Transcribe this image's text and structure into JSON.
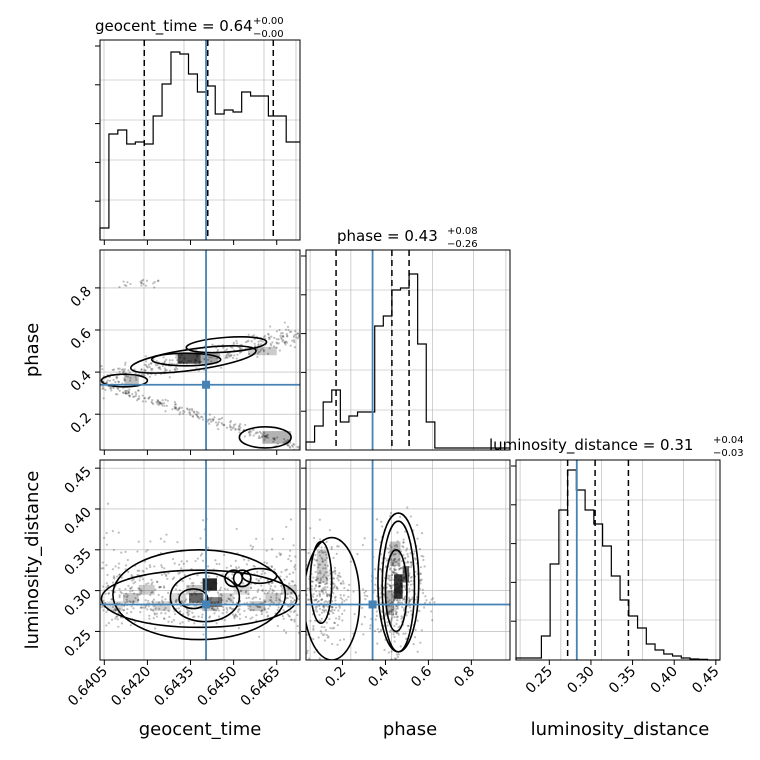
{
  "chart_data": [
    {
      "type": "histogram",
      "panel": "geocent_time",
      "title_base": "geocent_time = 0.64",
      "title_plus": "+0.00",
      "title_minus": "−0.00",
      "xlim": [
        0.64035,
        0.64731
      ],
      "xticks": [
        "0.6405",
        "0.6420",
        "0.6435",
        "0.6450",
        "0.6465"
      ],
      "xtick_values": [
        0.6405,
        0.642,
        0.6435,
        0.645,
        0.6465
      ],
      "xlabel": "geocent_time",
      "ylim": [
        0,
        1.0
      ],
      "bin_edges": [
        0.64035,
        0.64066,
        0.64097,
        0.64128,
        0.64158,
        0.64189,
        0.6422,
        0.64251,
        0.64282,
        0.64313,
        0.64343,
        0.64374,
        0.64405,
        0.64436,
        0.64467,
        0.64498,
        0.64528,
        0.64559,
        0.6459,
        0.64621,
        0.64652,
        0.64683,
        0.64713,
        0.64731
      ],
      "values": [
        0.06,
        0.53,
        0.55,
        0.48,
        0.49,
        0.48,
        0.62,
        0.78,
        0.94,
        0.93,
        0.83,
        0.74,
        0.77,
        0.63,
        0.65,
        0.64,
        0.74,
        0.72,
        0.72,
        0.62,
        0.62,
        0.49,
        0.49
      ],
      "quantiles": [
        0.64189,
        0.6441,
        0.64638
      ],
      "truth": 0.64404
    },
    {
      "type": "histogram",
      "panel": "phase",
      "title_base": "phase = 0.43",
      "title_plus": "+0.08",
      "title_minus": "−0.26",
      "xlim": [
        0.03,
        0.98
      ],
      "ylim": [
        0,
        1.0
      ],
      "bin_edges": [
        0.03,
        0.07,
        0.11,
        0.15,
        0.19,
        0.23,
        0.27,
        0.31,
        0.35,
        0.39,
        0.43,
        0.47,
        0.51,
        0.55,
        0.59,
        0.63,
        0.98
      ],
      "values": [
        0.04,
        0.12,
        0.24,
        0.3,
        0.14,
        0.17,
        0.19,
        0.19,
        0.62,
        0.67,
        0.8,
        0.81,
        0.88,
        0.53,
        0.14,
        0.01
      ],
      "quantiles": [
        0.17,
        0.43,
        0.51
      ],
      "truth": 0.34
    },
    {
      "type": "histogram",
      "panel": "luminosity_distance",
      "title_base": "luminosity_distance = 0.31",
      "title_plus": "+0.04",
      "title_minus": "−0.03",
      "xlim": [
        0.21,
        0.455
      ],
      "xticks": [
        "0.25",
        "0.30",
        "0.35",
        "0.40",
        "0.45"
      ],
      "xtick_values": [
        0.25,
        0.3,
        0.35,
        0.4,
        0.45
      ],
      "xlabel": "luminosity_distance",
      "ylim": [
        0,
        1.0
      ],
      "bin_edges": [
        0.21,
        0.2405,
        0.251,
        0.2615,
        0.272,
        0.2825,
        0.293,
        0.3035,
        0.314,
        0.3245,
        0.335,
        0.3455,
        0.356,
        0.3665,
        0.377,
        0.3875,
        0.398,
        0.4085,
        0.419,
        0.4295,
        0.44,
        0.455
      ],
      "values": [
        0.01,
        0.12,
        0.48,
        0.75,
        0.95,
        0.85,
        0.75,
        0.68,
        0.57,
        0.42,
        0.3,
        0.22,
        0.16,
        0.08,
        0.05,
        0.03,
        0.02,
        0.01,
        0.005,
        0.003,
        0.0
      ],
      "quantiles": [
        0.272,
        0.305,
        0.345
      ],
      "truth": 0.283
    },
    {
      "type": "scatter",
      "panel": "phase_vs_geocent_time",
      "x": "geocent_time",
      "y": "phase",
      "ylim": [
        0.03,
        0.98
      ],
      "yticks": [
        "0.2",
        "0.4",
        "0.6",
        "0.8"
      ],
      "ytick_values": [
        0.2,
        0.4,
        0.6,
        0.8
      ],
      "ylabel": "phase",
      "truth": [
        0.64404,
        0.34
      ]
    },
    {
      "type": "scatter",
      "panel": "luminosity_distance_vs_geocent_time",
      "x": "geocent_time",
      "y": "luminosity_distance",
      "ylim": [
        0.215,
        0.46
      ],
      "yticks": [
        "0.25",
        "0.30",
        "0.35",
        "0.40",
        "0.45"
      ],
      "ytick_values": [
        0.25,
        0.3,
        0.35,
        0.4,
        0.45
      ],
      "ylabel": "luminosity_distance",
      "truth": [
        0.64404,
        0.283
      ]
    },
    {
      "type": "scatter",
      "panel": "luminosity_distance_vs_phase",
      "x": "phase",
      "y": "luminosity_distance",
      "xlim": [
        0.03,
        0.98
      ],
      "xticks": [
        "0.2",
        "0.4",
        "0.6",
        "0.8"
      ],
      "xtick_values": [
        0.2,
        0.4,
        0.6,
        0.8
      ],
      "xlabel": "phase",
      "truth": [
        0.34,
        0.283
      ]
    }
  ],
  "colors": {
    "truth": "#4682b4",
    "line": "#000000",
    "grid": "#b0b0b0"
  }
}
